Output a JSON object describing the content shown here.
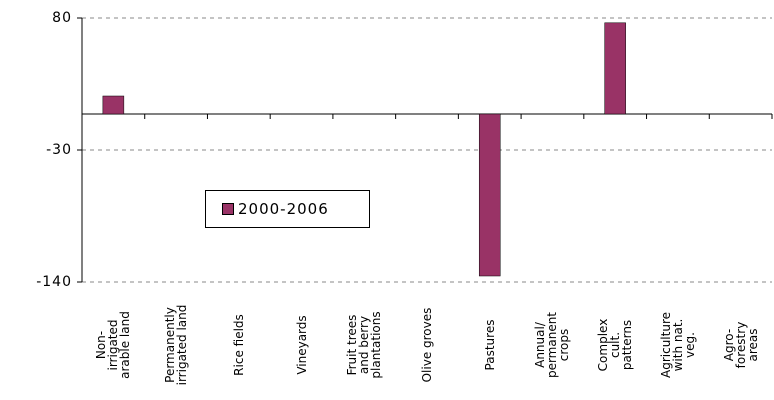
{
  "chart_data": {
    "type": "bar",
    "categories": [
      "Non-\nirrigated\narable land",
      "Permanently\nirrigated land",
      "Rice fields",
      "Vineyards",
      "Fruit trees\nand berry\nplantations",
      "Olive groves",
      "Pastures",
      "Annual/\npermanent\ncrops",
      "Complex\ncult.\npatterns",
      "Agriculture\nwith nat.\nveg.",
      "Agro-\nforestry\nareas"
    ],
    "series": [
      {
        "name": "2000-2006",
        "color": "#993366",
        "values": [
          15,
          0,
          0,
          0,
          0,
          0,
          -135,
          0,
          76,
          0,
          0
        ]
      }
    ],
    "ylim": [
      -140,
      80
    ],
    "yticks": [
      -140,
      -30,
      80
    ],
    "grid": true
  }
}
